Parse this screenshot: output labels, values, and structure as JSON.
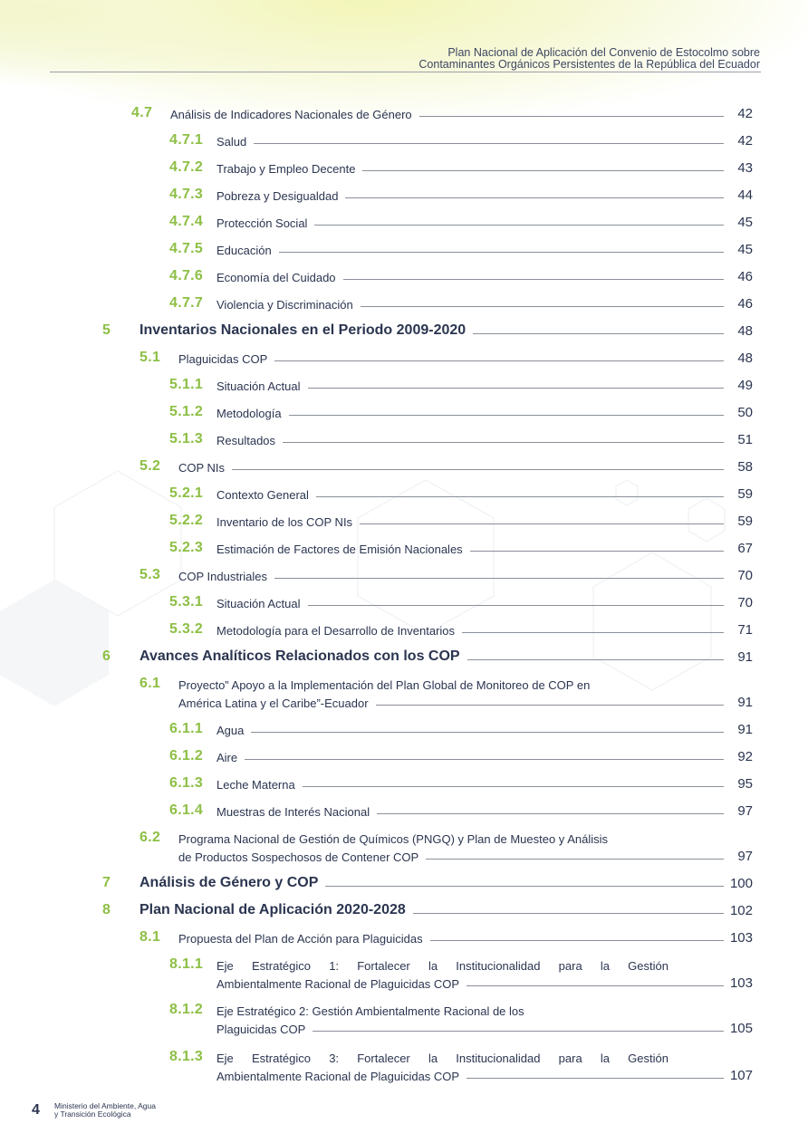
{
  "header": {
    "line1": "Plan Nacional de Aplicación del Convenio de Estocolmo sobre",
    "line2": "Contaminantes Orgánicos Persistentes de la República del Ecuador"
  },
  "colors": {
    "accent": "#8dbf45",
    "text": "#2b3550"
  },
  "toc": [
    {
      "level": 2,
      "num": "4.7",
      "lines": [
        "Análisis de Indicadores Nacionales de Género"
      ],
      "page": "42"
    },
    {
      "level": 3,
      "num": "4.7.1",
      "lines": [
        "Salud"
      ],
      "page": "42"
    },
    {
      "level": 3,
      "num": "4.7.2",
      "lines": [
        "Trabajo y Empleo Decente"
      ],
      "page": "43"
    },
    {
      "level": 3,
      "num": "4.7.3",
      "lines": [
        "Pobreza y Desigualdad"
      ],
      "page": "44"
    },
    {
      "level": 3,
      "num": "4.7.4",
      "lines": [
        "Protección Social"
      ],
      "page": "45"
    },
    {
      "level": 3,
      "num": "4.7.5",
      "lines": [
        "Educación"
      ],
      "page": "45"
    },
    {
      "level": 3,
      "num": "4.7.6",
      "lines": [
        "Economía del Cuidado"
      ],
      "page": "46"
    },
    {
      "level": 3,
      "num": "4.7.7",
      "lines": [
        "Violencia y Discriminación"
      ],
      "page": "46"
    },
    {
      "level": 1,
      "num": "5",
      "lines": [
        "Inventarios Nacionales en el Periodo 2009-2020"
      ],
      "page": "48"
    },
    {
      "level": 2,
      "num": "5.1",
      "lines": [
        "Plaguicidas COP"
      ],
      "page": "48"
    },
    {
      "level": 3,
      "num": "5.1.1",
      "lines": [
        "Situación Actual"
      ],
      "page": "49"
    },
    {
      "level": 3,
      "num": "5.1.2",
      "lines": [
        "Metodología"
      ],
      "page": "50"
    },
    {
      "level": 3,
      "num": "5.1.3",
      "lines": [
        "Resultados"
      ],
      "page": "51"
    },
    {
      "level": 2,
      "num": "5.2",
      "lines": [
        "COP NIs"
      ],
      "page": "58"
    },
    {
      "level": 3,
      "num": "5.2.1",
      "lines": [
        "Contexto General"
      ],
      "page": "59"
    },
    {
      "level": 3,
      "num": "5.2.2",
      "lines": [
        "Inventario de los COP NIs"
      ],
      "page": "59"
    },
    {
      "level": 3,
      "num": "5.2.3",
      "lines": [
        "Estimación de Factores de Emisión Nacionales"
      ],
      "page": "67"
    },
    {
      "level": 2,
      "num": "5.3",
      "lines": [
        "COP Industriales"
      ],
      "page": "70"
    },
    {
      "level": 3,
      "num": "5.3.1",
      "lines": [
        "Situación Actual"
      ],
      "page": "70"
    },
    {
      "level": 3,
      "num": "5.3.2",
      "lines": [
        "Metodología para el Desarrollo de Inventarios"
      ],
      "page": "71"
    },
    {
      "level": 1,
      "num": "6",
      "lines": [
        "Avances Analíticos Relacionados con los COP"
      ],
      "page": "91"
    },
    {
      "level": 2,
      "num": "6.1",
      "lines": [
        "Proyecto” Apoyo a la Implementación del Plan Global de Monitoreo de COP en",
        "América Latina y el Caribe”-Ecuador"
      ],
      "page": "91"
    },
    {
      "level": 3,
      "num": "6.1.1",
      "lines": [
        "Agua"
      ],
      "page": "91"
    },
    {
      "level": 3,
      "num": "6.1.2",
      "lines": [
        "Aire"
      ],
      "page": "92"
    },
    {
      "level": 3,
      "num": "6.1.3",
      "lines": [
        "Leche Materna"
      ],
      "page": "95"
    },
    {
      "level": 3,
      "num": "6.1.4",
      "lines": [
        "Muestras de Interés Nacional"
      ],
      "page": "97"
    },
    {
      "level": 2,
      "num": "6.2",
      "lines": [
        "Programa Nacional de Gestión de Químicos (PNGQ) y Plan de Muesteo y Análisis",
        "de Productos Sospechosos de Contener COP"
      ],
      "page": "97"
    },
    {
      "level": 1,
      "num": "7",
      "lines": [
        "Análisis de Género y COP"
      ],
      "page": "100"
    },
    {
      "level": 1,
      "num": "8",
      "lines": [
        "Plan Nacional de Aplicación 2020-2028"
      ],
      "page": "102"
    },
    {
      "level": 2,
      "num": "8.1",
      "lines": [
        "Propuesta del Plan de Acción para Plaguicidas"
      ],
      "page": "103"
    },
    {
      "level": 3,
      "num": "8.1.1",
      "lines": [
        "Eje Estratégico 1: Fortalecer la Institucionalidad para la Gestión",
        "Ambientalmente Racional de Plaguicidas COP"
      ],
      "page": "103"
    },
    {
      "level": 3,
      "num": "8.1.2",
      "lines": [
        "Eje Estratégico 2: Gestión Ambientalmente Racional de los",
        "Plaguicidas COP"
      ],
      "page": "105"
    },
    {
      "level": 3,
      "num": "8.1.3",
      "lines": [
        "Eje Estratégico 3: Fortalecer la Institucionalidad para la Gestión",
        "Ambientalmente Racional de Plaguicidas COP"
      ],
      "page": "107"
    }
  ],
  "footer": {
    "page_number": "4",
    "ministry_line1": "Ministerio del Ambiente, Agua",
    "ministry_line2": "y Transición Ecológica"
  }
}
